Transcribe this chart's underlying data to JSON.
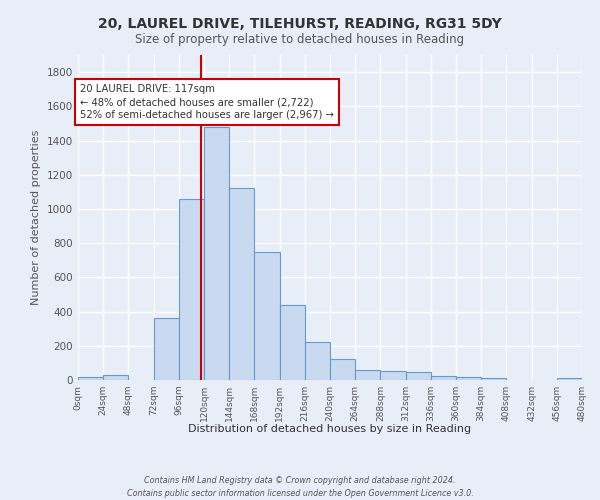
{
  "title": "20, LAUREL DRIVE, TILEHURST, READING, RG31 5DY",
  "subtitle": "Size of property relative to detached houses in Reading",
  "xlabel": "Distribution of detached houses by size in Reading",
  "ylabel": "Number of detached properties",
  "bin_edges": [
    0,
    24,
    48,
    72,
    96,
    120,
    144,
    168,
    192,
    216,
    240,
    264,
    288,
    312,
    336,
    360,
    384,
    408,
    432,
    456,
    480
  ],
  "bar_heights": [
    15,
    30,
    0,
    360,
    1060,
    1480,
    1120,
    750,
    440,
    220,
    120,
    60,
    55,
    45,
    25,
    20,
    10,
    0,
    0,
    10
  ],
  "bar_color": "#c9d9f0",
  "bar_edge_color": "#6699cc",
  "property_line_x": 117,
  "property_line_color": "#cc0000",
  "annotation_line1": "20 LAUREL DRIVE: 117sqm",
  "annotation_line2": "← 48% of detached houses are smaller (2,722)",
  "annotation_line3": "52% of semi-detached houses are larger (2,967) →",
  "annotation_box_color": "#ffffff",
  "annotation_box_edge": "#cc0000",
  "ylim": [
    0,
    1900
  ],
  "yticks": [
    0,
    200,
    400,
    600,
    800,
    1000,
    1200,
    1400,
    1600,
    1800
  ],
  "background_color": "#e8eef8",
  "grid_color": "#ffffff",
  "footer_line1": "Contains HM Land Registry data © Crown copyright and database right 2024.",
  "footer_line2": "Contains public sector information licensed under the Open Government Licence v3.0."
}
